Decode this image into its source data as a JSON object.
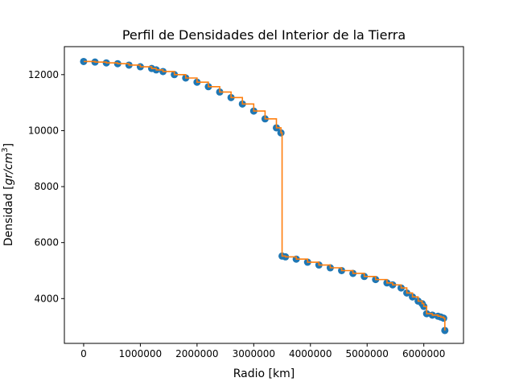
{
  "chart_data": {
    "type": "scatter",
    "title": "Perfil de Densidades del Interior de la Tierra",
    "xlabel": "Radio [km]",
    "ylabel": "Densidad [gr/cm³]",
    "ylabel_parts": {
      "prefix": "Densidad [",
      "var": "gr/cm",
      "sup": "3",
      "suffix": "]"
    },
    "xlim": [
      -340000,
      6700000
    ],
    "ylim": [
      2400,
      13000
    ],
    "xticks": [
      0,
      1000000,
      2000000,
      3000000,
      4000000,
      5000000,
      6000000
    ],
    "xtick_labels": [
      "0",
      "1000000",
      "2000000",
      "3000000",
      "4000000",
      "5000000",
      "6000000"
    ],
    "yticks": [
      4000,
      6000,
      8000,
      10000,
      12000
    ],
    "ytick_labels": [
      "4000",
      "6000",
      "8000",
      "10000",
      "12000"
    ],
    "grid": false,
    "legend": "none",
    "colors": {
      "points": "#1f77b4",
      "line": "#ff7f0e"
    },
    "series": [
      {
        "style": "points",
        "x": [
          0,
          200000,
          400000,
          600000,
          800000,
          1000000,
          1200000,
          1280000,
          1400000,
          1600000,
          1800000,
          2000000,
          2200000,
          2400000,
          2600000,
          2800000,
          3000000,
          3200000,
          3400000,
          3480000,
          3500000,
          3560000,
          3750000,
          3950000,
          4150000,
          4350000,
          4550000,
          4750000,
          4950000,
          5150000,
          5350000,
          5450000,
          5600000,
          5700000,
          5800000,
          5900000,
          5970000,
          6000000,
          6050000,
          6150000,
          6250000,
          6300000,
          6350000,
          6371000
        ],
        "y": [
          12470,
          12450,
          12420,
          12390,
          12340,
          12280,
          12220,
          12170,
          12110,
          12000,
          11880,
          11730,
          11570,
          11380,
          11180,
          10950,
          10700,
          10420,
          10100,
          9920,
          5520,
          5490,
          5410,
          5300,
          5200,
          5100,
          5000,
          4900,
          4790,
          4680,
          4560,
          4490,
          4380,
          4200,
          4060,
          3910,
          3820,
          3720,
          3460,
          3410,
          3370,
          3340,
          3300,
          2860
        ]
      },
      {
        "style": "step-line",
        "x": [
          0,
          200000,
          400000,
          600000,
          800000,
          1000000,
          1200000,
          1280000,
          1400000,
          1600000,
          1800000,
          2000000,
          2200000,
          2400000,
          2600000,
          2800000,
          3000000,
          3200000,
          3400000,
          3480000,
          3500000,
          3560000,
          3750000,
          3950000,
          4150000,
          4350000,
          4550000,
          4750000,
          4950000,
          5150000,
          5350000,
          5450000,
          5600000,
          5700000,
          5800000,
          5900000,
          5970000,
          6000000,
          6050000,
          6150000,
          6250000,
          6300000,
          6350000,
          6371000
        ],
        "y": [
          12470,
          12450,
          12420,
          12390,
          12340,
          12280,
          12220,
          12170,
          12110,
          12000,
          11880,
          11730,
          11570,
          11380,
          11180,
          10950,
          10700,
          10420,
          10100,
          9920,
          5520,
          5490,
          5410,
          5300,
          5200,
          5100,
          5000,
          4900,
          4790,
          4680,
          4560,
          4490,
          4380,
          4200,
          4060,
          3910,
          3820,
          3720,
          3460,
          3410,
          3370,
          3340,
          3300,
          2860
        ]
      }
    ]
  }
}
